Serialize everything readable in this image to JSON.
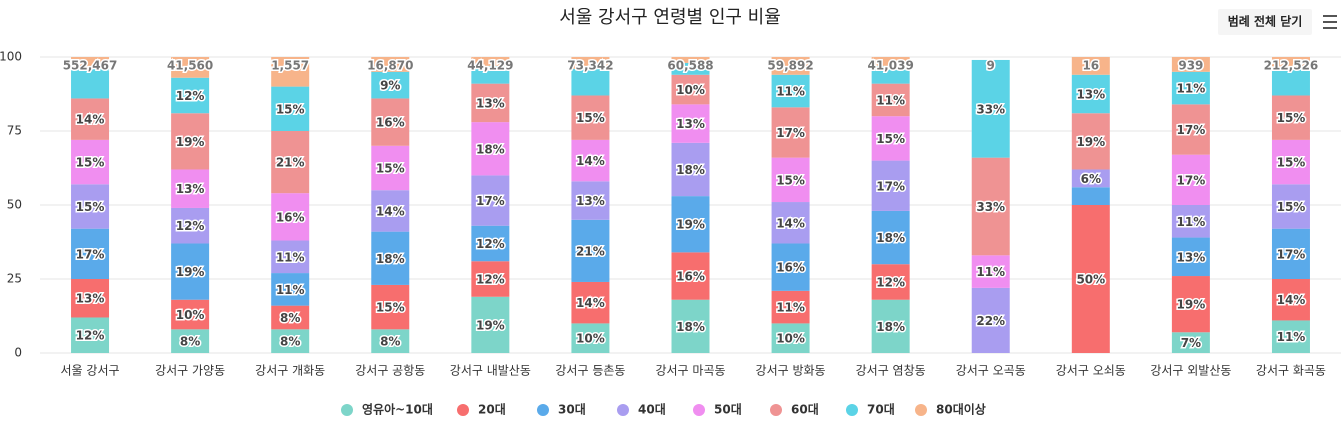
{
  "chart_data": {
    "type": "stacked_bar",
    "title": "서울 강서구 연령별 인구 비율",
    "button": "범례 전체 닫기",
    "categories": [
      "서울 강서구",
      "강서구 가양동",
      "강서구 개화동",
      "강서구 공항동",
      "강서구 내발산동",
      "강서구 등촌동",
      "강서구 마곡동",
      "강서구 방화동",
      "강서구 염창동",
      "강서구 오곡동",
      "강서구 오쇠동",
      "강서구 외발산동",
      "강서구 화곡동"
    ],
    "ylim": [
      0,
      100
    ],
    "yticks": [
      0,
      25,
      50,
      75,
      100
    ],
    "grid": true,
    "totals": {
      "values": [
        552467,
        41560,
        1557,
        16870,
        44129,
        73342,
        60588,
        59892,
        41039,
        9,
        16,
        939,
        212526
      ],
      "value_labels": [
        "552,467",
        "41,560",
        "1,557",
        "16,870",
        "44,129",
        "73,342",
        "60,588",
        "59,892",
        "41,039",
        "9",
        "16",
        "939",
        "212,526"
      ]
    },
    "series": [
      {
        "name": "영유아~10대",
        "color": "#7dd5c9",
        "values": [
          12,
          8,
          8,
          8,
          19,
          10,
          18,
          10,
          18,
          0,
          0,
          7,
          11
        ],
        "value_labels": [
          "12%",
          "8%",
          "8%",
          "8%",
          "19%",
          "10%",
          "18%",
          "10%",
          "18%",
          null,
          null,
          "7%",
          "11%"
        ]
      },
      {
        "name": "20대",
        "color": "#f76e6e",
        "values": [
          13,
          10,
          8,
          15,
          12,
          14,
          16,
          11,
          12,
          0,
          50,
          19,
          14
        ],
        "value_labels": [
          "13%",
          "10%",
          "8%",
          "15%",
          "12%",
          "14%",
          "16%",
          "11%",
          "12%",
          null,
          "50%",
          "19%",
          "14%"
        ]
      },
      {
        "name": "30대",
        "color": "#5aaaea",
        "values": [
          17,
          19,
          11,
          18,
          12,
          21,
          19,
          16,
          18,
          0,
          6,
          13,
          17
        ],
        "value_labels": [
          "17%",
          "19%",
          "11%",
          "18%",
          "12%",
          "21%",
          "19%",
          "16%",
          "18%",
          null,
          null,
          "13%",
          "17%"
        ]
      },
      {
        "name": "40대",
        "color": "#a99df0",
        "values": [
          15,
          12,
          11,
          14,
          17,
          13,
          18,
          14,
          17,
          22,
          6,
          11,
          15
        ],
        "value_labels": [
          "15%",
          "12%",
          "11%",
          "14%",
          "17%",
          "13%",
          "18%",
          "14%",
          "17%",
          "22%",
          "6%",
          "11%",
          "15%"
        ]
      },
      {
        "name": "50대",
        "color": "#f08ef0",
        "values": [
          15,
          13,
          16,
          15,
          18,
          14,
          13,
          15,
          15,
          11,
          0,
          17,
          15
        ],
        "value_labels": [
          "15%",
          "13%",
          "16%",
          "15%",
          "18%",
          "14%",
          "13%",
          "15%",
          "15%",
          "11%",
          null,
          "17%",
          "15%"
        ]
      },
      {
        "name": "60대",
        "color": "#ef9393",
        "values": [
          14,
          19,
          21,
          16,
          13,
          15,
          10,
          17,
          11,
          33,
          19,
          17,
          15
        ],
        "value_labels": [
          "14%",
          "19%",
          "21%",
          "16%",
          "13%",
          "15%",
          "10%",
          "17%",
          "11%",
          "33%",
          "19%",
          "17%",
          "15%"
        ]
      },
      {
        "name": "70대",
        "color": "#5bd3e6",
        "values": [
          10,
          12,
          15,
          9,
          6,
          9,
          4,
          11,
          6,
          33,
          13,
          11,
          9
        ],
        "value_labels": [
          null,
          "12%",
          "15%",
          "9%",
          null,
          null,
          null,
          "11%",
          null,
          "33%",
          "13%",
          "11%",
          null
        ]
      },
      {
        "name": "80대이상",
        "color": "#f7b48a",
        "values": [
          4,
          7,
          10,
          5,
          3,
          4,
          2,
          6,
          3,
          0,
          6,
          5,
          4
        ],
        "value_labels": [
          null,
          null,
          null,
          null,
          null,
          null,
          null,
          null,
          null,
          null,
          null,
          null,
          null
        ]
      }
    ]
  }
}
